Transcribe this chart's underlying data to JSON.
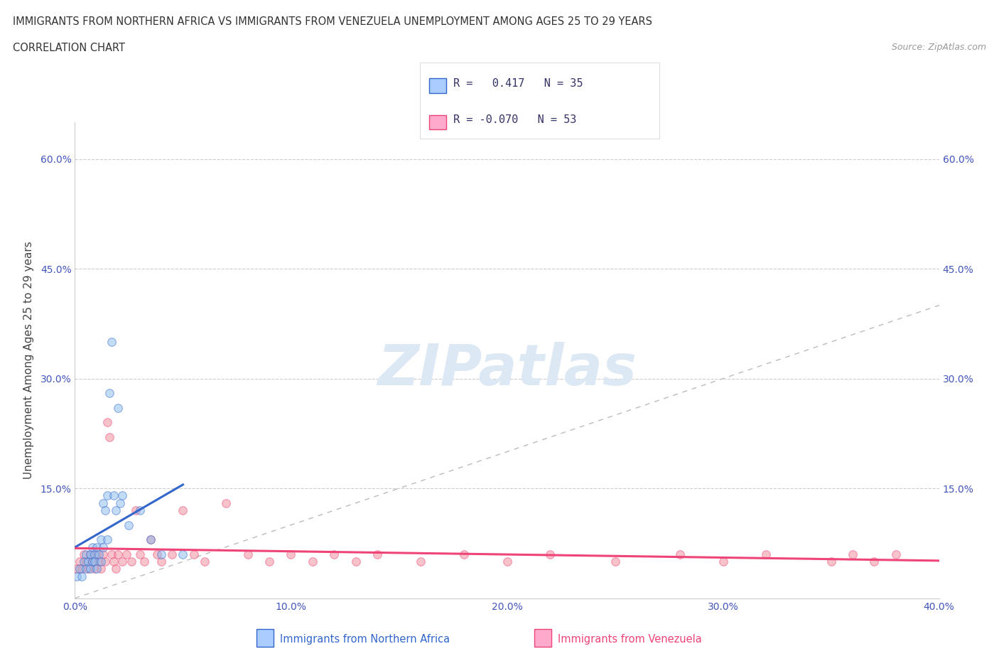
{
  "title_line1": "IMMIGRANTS FROM NORTHERN AFRICA VS IMMIGRANTS FROM VENEZUELA UNEMPLOYMENT AMONG AGES 25 TO 29 YEARS",
  "title_line2": "CORRELATION CHART",
  "source_text": "Source: ZipAtlas.com",
  "ylabel": "Unemployment Among Ages 25 to 29 years",
  "xlim": [
    0.0,
    0.4
  ],
  "ylim": [
    0.0,
    0.65
  ],
  "xticks": [
    0.0,
    0.1,
    0.2,
    0.3,
    0.4
  ],
  "xticklabels": [
    "0.0%",
    "10.0%",
    "20.0%",
    "30.0%",
    "40.0%"
  ],
  "yticks": [
    0.0,
    0.15,
    0.3,
    0.45,
    0.6
  ],
  "yticklabels": [
    "",
    "15.0%",
    "30.0%",
    "45.0%",
    "60.0%"
  ],
  "right_yticklabels": [
    "15.0%",
    "30.0%",
    "45.0%",
    "60.0%"
  ],
  "color_na": "#aaccff",
  "color_ve": "#ffaacc",
  "scatter_color_na": "#88bbee",
  "scatter_color_ve": "#ee8899",
  "trend_color_na": "#3366cc",
  "trend_color_ve": "#ee4477",
  "diagonal_color": "#bbbbbb",
  "watermark_color": "#dde8f5",
  "background_color": "#ffffff",
  "na_R": 0.417,
  "na_N": 35,
  "ve_R": -0.07,
  "ve_N": 53,
  "north_africa_x": [
    0.001,
    0.002,
    0.003,
    0.004,
    0.005,
    0.005,
    0.006,
    0.007,
    0.007,
    0.008,
    0.008,
    0.009,
    0.009,
    0.01,
    0.01,
    0.011,
    0.012,
    0.012,
    0.013,
    0.013,
    0.014,
    0.015,
    0.015,
    0.016,
    0.017,
    0.018,
    0.019,
    0.02,
    0.021,
    0.022,
    0.025,
    0.03,
    0.035,
    0.04,
    0.05
  ],
  "north_africa_y": [
    0.03,
    0.04,
    0.03,
    0.05,
    0.04,
    0.06,
    0.05,
    0.04,
    0.06,
    0.05,
    0.07,
    0.06,
    0.05,
    0.04,
    0.07,
    0.06,
    0.05,
    0.08,
    0.07,
    0.13,
    0.12,
    0.14,
    0.08,
    0.28,
    0.35,
    0.14,
    0.12,
    0.26,
    0.13,
    0.14,
    0.1,
    0.12,
    0.08,
    0.06,
    0.06
  ],
  "venezuela_x": [
    0.001,
    0.002,
    0.003,
    0.004,
    0.005,
    0.006,
    0.007,
    0.008,
    0.009,
    0.01,
    0.011,
    0.012,
    0.013,
    0.014,
    0.015,
    0.016,
    0.017,
    0.018,
    0.019,
    0.02,
    0.022,
    0.024,
    0.026,
    0.028,
    0.03,
    0.032,
    0.035,
    0.038,
    0.04,
    0.045,
    0.05,
    0.055,
    0.06,
    0.07,
    0.08,
    0.09,
    0.1,
    0.11,
    0.12,
    0.13,
    0.14,
    0.16,
    0.18,
    0.2,
    0.22,
    0.25,
    0.28,
    0.3,
    0.32,
    0.35,
    0.36,
    0.37,
    0.38
  ],
  "venezuela_y": [
    0.04,
    0.05,
    0.04,
    0.06,
    0.05,
    0.04,
    0.06,
    0.05,
    0.04,
    0.06,
    0.05,
    0.04,
    0.06,
    0.05,
    0.24,
    0.22,
    0.06,
    0.05,
    0.04,
    0.06,
    0.05,
    0.06,
    0.05,
    0.12,
    0.06,
    0.05,
    0.08,
    0.06,
    0.05,
    0.06,
    0.12,
    0.06,
    0.05,
    0.13,
    0.06,
    0.05,
    0.06,
    0.05,
    0.06,
    0.05,
    0.06,
    0.05,
    0.06,
    0.05,
    0.06,
    0.05,
    0.06,
    0.05,
    0.06,
    0.05,
    0.06,
    0.05,
    0.06
  ]
}
